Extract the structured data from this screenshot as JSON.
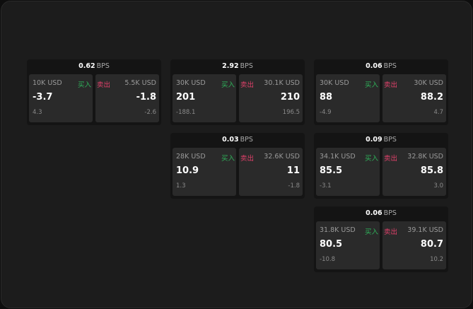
{
  "unit": "BPS",
  "buy_label": "买入",
  "sell_label": "卖出",
  "colors": {
    "buy": "#2fb35a",
    "sell": "#e0406a"
  },
  "panels": [
    {
      "spread": "0.62",
      "buy": {
        "qty": "10K USD",
        "price": "-3.7",
        "change": "4.3"
      },
      "sell": {
        "qty": "5.5K USD",
        "price": "-1.8",
        "change": "-2.6"
      }
    },
    {
      "spread": "2.92",
      "buy": {
        "qty": "30K USD",
        "price": "201",
        "change": "-188.1"
      },
      "sell": {
        "qty": "30.1K USD",
        "price": "210",
        "change": "196.5"
      }
    },
    {
      "spread": "0.06",
      "buy": {
        "qty": "30K USD",
        "price": "88",
        "change": "-4.9"
      },
      "sell": {
        "qty": "30K USD",
        "price": "88.2",
        "change": "4.7"
      }
    },
    {
      "spread": "0.03",
      "buy": {
        "qty": "28K USD",
        "price": "10.9",
        "change": "1.3"
      },
      "sell": {
        "qty": "32.6K USD",
        "price": "11",
        "change": "-1.8"
      }
    },
    {
      "spread": "0.09",
      "buy": {
        "qty": "34.1K USD",
        "price": "85.5",
        "change": "-3.1"
      },
      "sell": {
        "qty": "32.8K USD",
        "price": "85.8",
        "change": "3.0"
      }
    },
    {
      "spread": "0.06",
      "buy": {
        "qty": "31.8K USD",
        "price": "80.5",
        "change": "-10.8"
      },
      "sell": {
        "qty": "39.1K USD",
        "price": "80.7",
        "change": "10.2"
      }
    }
  ]
}
